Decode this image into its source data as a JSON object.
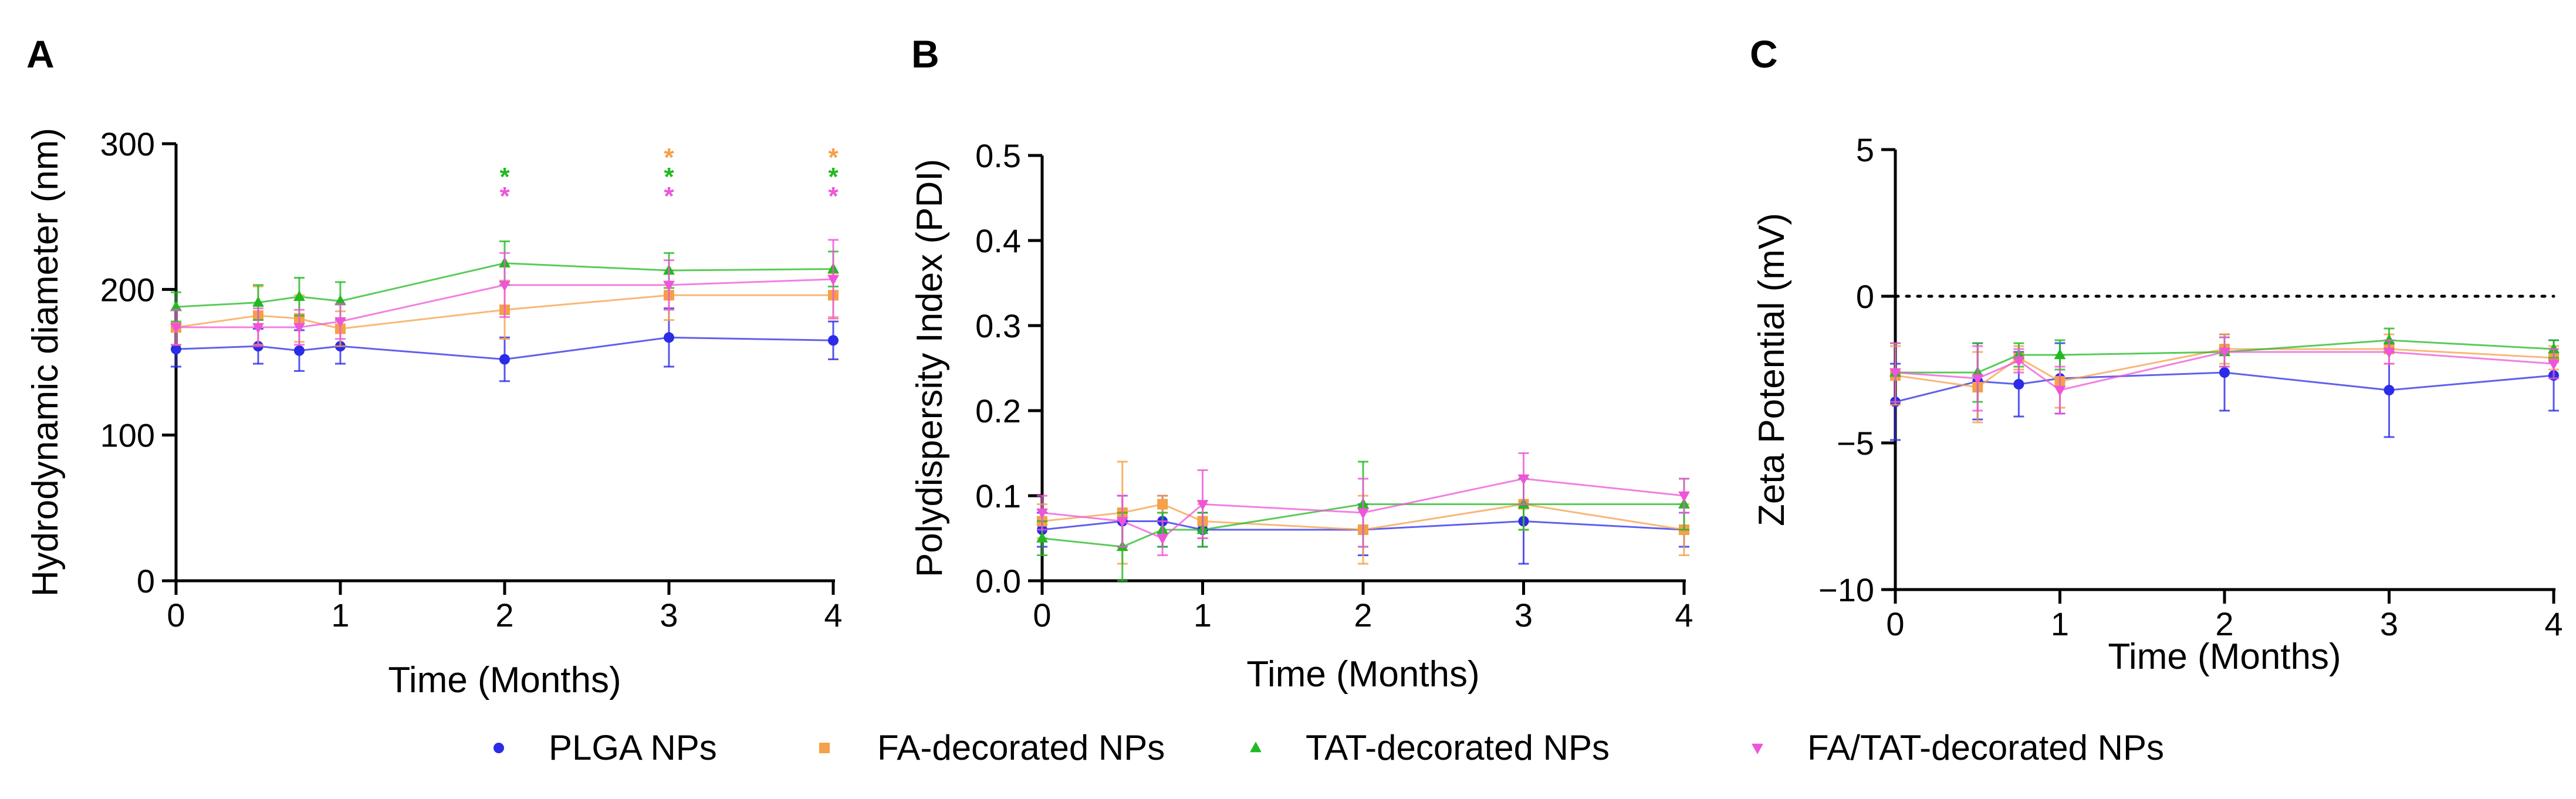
{
  "colors": {
    "PLGA NPs": "#2b2be8",
    "FA-decorated NPs": "#f5a04a",
    "TAT-decorated NPs": "#22b922",
    "FA/TAT-decorated NPs": "#ee55d8",
    "axis": "#000000"
  },
  "legend": [
    {
      "name": "PLGA NPs",
      "marker": "circle"
    },
    {
      "name": "FA-decorated NPs",
      "marker": "square"
    },
    {
      "name": "TAT-decorated NPs",
      "marker": "triangle-up"
    },
    {
      "name": "FA/TAT-decorated NPs",
      "marker": "triangle-down"
    }
  ],
  "chart_data": [
    {
      "panel": "A",
      "type": "line",
      "title": "",
      "xlabel": "Time (Months)",
      "ylabel": "Hydrodynamic diameter (nm)",
      "xlim": [
        0,
        4
      ],
      "ylim": [
        0,
        300
      ],
      "xticks": [
        0,
        1,
        2,
        3,
        4
      ],
      "yticks": [
        0,
        100,
        200,
        300
      ],
      "x": [
        0,
        0.5,
        0.75,
        1,
        2,
        3,
        4
      ],
      "series": [
        {
          "name": "PLGA NPs",
          "values": [
            159,
            161,
            158,
            161,
            152,
            167,
            165
          ],
          "errors": [
            12,
            12,
            14,
            12,
            15,
            20,
            13
          ]
        },
        {
          "name": "FA-decorated NPs",
          "values": [
            174,
            182,
            180,
            173,
            186,
            196,
            196
          ],
          "errors": [
            12,
            20,
            16,
            12,
            20,
            17,
            15
          ]
        },
        {
          "name": "TAT-decorated NPs",
          "values": [
            188,
            191,
            195,
            192,
            218,
            213,
            214
          ],
          "errors": [
            10,
            12,
            13,
            13,
            15,
            12,
            12
          ]
        },
        {
          "name": "FA/TAT-decorated NPs",
          "values": [
            174,
            174,
            174,
            178,
            203,
            203,
            207
          ],
          "errors": [
            12,
            13,
            12,
            12,
            22,
            17,
            27
          ]
        }
      ],
      "annotations": [
        {
          "x": 2,
          "label": "*",
          "series": [
            "TAT-decorated NPs",
            "FA/TAT-decorated NPs"
          ]
        },
        {
          "x": 3,
          "label": "*",
          "series": [
            "FA-decorated NPs",
            "TAT-decorated NPs",
            "FA/TAT-decorated NPs"
          ]
        },
        {
          "x": 4,
          "label": "*",
          "series": [
            "FA-decorated NPs",
            "TAT-decorated NPs",
            "FA/TAT-decorated NPs"
          ]
        }
      ],
      "reference_line": null
    },
    {
      "panel": "B",
      "type": "line",
      "title": "",
      "xlabel": "Time (Months)",
      "ylabel": "Polydispersity Index (PDI)",
      "xlim": [
        0,
        4
      ],
      "ylim": [
        0,
        0.5
      ],
      "xticks": [
        0,
        1,
        2,
        3,
        4
      ],
      "yticks": [
        0.0,
        0.1,
        0.2,
        0.3,
        0.4,
        0.5
      ],
      "x": [
        0,
        0.5,
        0.75,
        1,
        2,
        3,
        4
      ],
      "series": [
        {
          "name": "PLGA NPs",
          "values": [
            0.06,
            0.07,
            0.07,
            0.06,
            0.06,
            0.07,
            0.06
          ],
          "errors": [
            0.02,
            0.03,
            0.03,
            0.02,
            0.03,
            0.05,
            0.02
          ]
        },
        {
          "name": "FA-decorated NPs",
          "values": [
            0.07,
            0.08,
            0.09,
            0.07,
            0.06,
            0.09,
            0.06
          ],
          "errors": [
            0.02,
            0.06,
            0.01,
            0.02,
            0.04,
            0.03,
            0.03
          ]
        },
        {
          "name": "TAT-decorated NPs",
          "values": [
            0.05,
            0.04,
            0.06,
            0.06,
            0.09,
            0.09,
            0.09
          ],
          "errors": [
            0.02,
            0.04,
            0.02,
            0.02,
            0.05,
            0.03,
            0.03
          ]
        },
        {
          "name": "FA/TAT-decorated NPs",
          "values": [
            0.08,
            0.07,
            0.05,
            0.09,
            0.08,
            0.12,
            0.1
          ],
          "errors": [
            0.02,
            0.03,
            0.02,
            0.04,
            0.04,
            0.03,
            0.02
          ]
        }
      ],
      "annotations": [],
      "reference_line": null
    },
    {
      "panel": "C",
      "type": "line",
      "title": "",
      "xlabel": "Time (Months)",
      "ylabel": "Zeta Potential (mV)",
      "xlim": [
        0,
        4
      ],
      "ylim": [
        -10,
        5
      ],
      "xticks": [
        0,
        1,
        2,
        3,
        4
      ],
      "yticks": [
        -10,
        -5,
        0,
        5
      ],
      "x": [
        0,
        0.5,
        0.75,
        1,
        2,
        3,
        4
      ],
      "series": [
        {
          "name": "PLGA NPs",
          "values": [
            -3.6,
            -2.9,
            -3.0,
            -2.8,
            -2.6,
            -3.2,
            -2.7
          ],
          "errors": [
            1.3,
            1.3,
            1.1,
            1.2,
            1.3,
            1.6,
            1.2
          ]
        },
        {
          "name": "FA-decorated NPs",
          "values": [
            -2.7,
            -3.1,
            -2.1,
            -2.9,
            -1.8,
            -1.8,
            -2.1
          ],
          "errors": [
            1.0,
            1.2,
            0.4,
            0.9,
            0.5,
            0.5,
            0.4
          ]
        },
        {
          "name": "TAT-decorated NPs",
          "values": [
            -2.6,
            -2.6,
            -2.0,
            -2.0,
            -1.9,
            -1.5,
            -1.8
          ],
          "errors": [
            1.0,
            1.0,
            0.4,
            0.5,
            0.5,
            0.4,
            0.3
          ]
        },
        {
          "name": "FA/TAT-decorated NPs",
          "values": [
            -2.6,
            -2.8,
            -2.2,
            -3.2,
            -1.9,
            -1.9,
            -2.3
          ],
          "errors": [
            1.0,
            1.1,
            0.4,
            0.8,
            0.5,
            0.4,
            0.5
          ]
        }
      ],
      "annotations": [],
      "reference_line": {
        "y": 0,
        "style": "dotted"
      }
    }
  ]
}
